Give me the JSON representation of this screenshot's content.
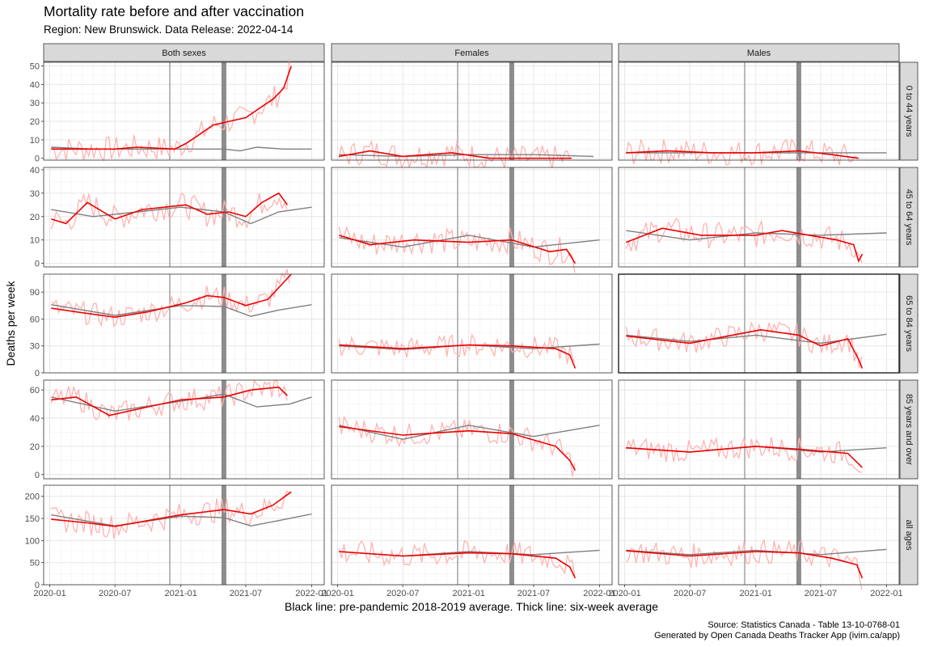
{
  "title": "Mortality rate before and after vaccination",
  "subtitle": "Region: New Brunswick. Data Release: 2022-04-14",
  "caption_lines": [
    "Source: Statistics Canada - Table 13-10-0768-01",
    "Generated by Open Canada Deaths Tracker App (ivim.ca/app)"
  ],
  "chart_data": {
    "type": "line",
    "facet_columns": [
      "Both sexes",
      "Females",
      "Males"
    ],
    "facet_rows": [
      "0 to 44 years",
      "45 to 64 years",
      "65 to 84 years",
      "85 years and over",
      "all ages"
    ],
    "ylabel": "Deaths per week",
    "xlabel": "Black line: pre-pandemic 2018-2019 average. Thick line: six-week average",
    "x_ticks": [
      "2020-01",
      "2020-07",
      "2021-01",
      "2021-07",
      "2022-01"
    ],
    "xlim": [
      "2019-12-15",
      "2022-02-05"
    ],
    "reference_lines": {
      "thin_vertical": "2020-12-01",
      "thick_vertical": "2021-05-01"
    },
    "grid": true,
    "colors": {
      "weekly": "#ffb3b3",
      "six_week_average": "#ee0000",
      "baseline": "#7f7f7f",
      "reference": "#8c8c8c"
    },
    "row_scales": [
      {
        "ylim": [
          -1,
          52
        ],
        "ticks": [
          0,
          10,
          20,
          30,
          40,
          50
        ]
      },
      {
        "ylim": [
          -1.5,
          41
        ],
        "ticks": [
          0,
          10,
          20,
          30,
          40
        ]
      },
      {
        "ylim": [
          0,
          110
        ],
        "ticks": [
          0,
          30,
          60,
          90
        ]
      },
      {
        "ylim": [
          -3,
          67
        ],
        "ticks": [
          0,
          20,
          40,
          60
        ]
      },
      {
        "ylim": [
          0,
          225
        ],
        "ticks": [
          0,
          50,
          100,
          150,
          200
        ]
      }
    ],
    "panels": [
      {
        "row": 0,
        "col": 0,
        "baseline": [
          [
            "2020-01-05",
            6
          ],
          [
            "2020-05-01",
            5
          ],
          [
            "2020-09-01",
            5
          ],
          [
            "2021-01-01",
            5
          ],
          [
            "2021-05-01",
            5
          ],
          [
            "2021-06-15",
            4
          ],
          [
            "2021-08-01",
            6
          ],
          [
            "2021-10-15",
            5
          ],
          [
            "2022-01-01",
            5
          ]
        ],
        "six_week_average": [
          [
            "2020-01-05",
            5
          ],
          [
            "2020-03-01",
            5
          ],
          [
            "2020-07-01",
            5
          ],
          [
            "2020-09-01",
            6
          ],
          [
            "2020-12-15",
            5
          ],
          [
            "2021-01-15",
            8
          ],
          [
            "2021-02-15",
            12
          ],
          [
            "2021-04-01",
            18
          ],
          [
            "2021-05-15",
            20
          ],
          [
            "2021-07-01",
            22
          ],
          [
            "2021-08-15",
            28
          ],
          [
            "2021-09-15",
            32
          ],
          [
            "2021-10-15",
            38
          ],
          [
            "2021-11-05",
            50
          ]
        ]
      },
      {
        "row": 0,
        "col": 1,
        "baseline": [
          [
            "2020-01-05",
            2
          ],
          [
            "2020-07-01",
            1
          ],
          [
            "2021-01-01",
            2
          ],
          [
            "2021-07-01",
            2
          ],
          [
            "2021-12-15",
            1
          ]
        ],
        "six_week_average": [
          [
            "2020-01-05",
            1
          ],
          [
            "2020-04-01",
            4
          ],
          [
            "2020-07-01",
            1
          ],
          [
            "2020-11-15",
            3
          ],
          [
            "2021-03-01",
            0
          ],
          [
            "2021-10-15",
            0
          ]
        ]
      },
      {
        "row": 0,
        "col": 2,
        "baseline": [
          [
            "2020-01-05",
            3
          ],
          [
            "2020-07-01",
            3
          ],
          [
            "2021-01-01",
            3
          ],
          [
            "2021-07-01",
            3
          ],
          [
            "2022-01-01",
            3
          ]
        ],
        "six_week_average": [
          [
            "2020-01-05",
            3
          ],
          [
            "2020-05-01",
            4
          ],
          [
            "2020-09-01",
            3
          ],
          [
            "2021-01-01",
            3
          ],
          [
            "2021-05-01",
            4
          ],
          [
            "2021-08-01",
            2
          ],
          [
            "2021-10-15",
            0
          ]
        ]
      },
      {
        "row": 1,
        "col": 0,
        "baseline": [
          [
            "2020-01-05",
            23
          ],
          [
            "2020-05-01",
            20
          ],
          [
            "2020-09-01",
            22
          ],
          [
            "2021-01-01",
            24
          ],
          [
            "2021-05-01",
            22
          ],
          [
            "2021-07-15",
            17
          ],
          [
            "2021-10-01",
            22
          ],
          [
            "2022-01-01",
            24
          ]
        ],
        "six_week_average": [
          [
            "2020-01-05",
            19
          ],
          [
            "2020-02-15",
            17
          ],
          [
            "2020-04-15",
            26
          ],
          [
            "2020-07-01",
            19
          ],
          [
            "2020-09-15",
            23
          ],
          [
            "2021-01-15",
            25
          ],
          [
            "2021-03-15",
            21
          ],
          [
            "2021-05-15",
            22
          ],
          [
            "2021-07-01",
            20
          ],
          [
            "2021-08-15",
            26
          ],
          [
            "2021-10-01",
            30
          ],
          [
            "2021-10-25",
            25
          ]
        ]
      },
      {
        "row": 1,
        "col": 1,
        "baseline": [
          [
            "2020-01-05",
            11
          ],
          [
            "2020-07-01",
            7
          ],
          [
            "2021-01-01",
            12
          ],
          [
            "2021-07-01",
            7
          ],
          [
            "2022-01-01",
            10
          ]
        ],
        "six_week_average": [
          [
            "2020-01-05",
            12
          ],
          [
            "2020-04-01",
            8
          ],
          [
            "2020-08-01",
            10
          ],
          [
            "2021-01-01",
            9
          ],
          [
            "2021-05-01",
            10
          ],
          [
            "2021-08-15",
            5
          ],
          [
            "2021-10-01",
            6
          ],
          [
            "2021-10-25",
            0
          ]
        ]
      },
      {
        "row": 1,
        "col": 2,
        "baseline": [
          [
            "2020-01-05",
            14
          ],
          [
            "2020-07-01",
            10
          ],
          [
            "2021-01-01",
            13
          ],
          [
            "2021-07-01",
            12
          ],
          [
            "2022-01-01",
            13
          ]
        ],
        "six_week_average": [
          [
            "2020-01-05",
            9
          ],
          [
            "2020-04-15",
            15
          ],
          [
            "2020-08-01",
            12
          ],
          [
            "2021-01-01",
            12
          ],
          [
            "2021-03-15",
            14
          ],
          [
            "2021-08-15",
            10
          ],
          [
            "2021-10-01",
            8
          ],
          [
            "2021-10-15",
            1
          ],
          [
            "2021-10-25",
            4
          ]
        ]
      },
      {
        "row": 2,
        "col": 0,
        "baseline": [
          [
            "2020-01-05",
            76
          ],
          [
            "2020-07-01",
            64
          ],
          [
            "2021-01-01",
            75
          ],
          [
            "2021-05-01",
            74
          ],
          [
            "2021-07-15",
            63
          ],
          [
            "2021-10-01",
            70
          ],
          [
            "2022-01-01",
            76
          ]
        ],
        "six_week_average": [
          [
            "2020-01-05",
            72
          ],
          [
            "2020-04-01",
            67
          ],
          [
            "2020-07-01",
            62
          ],
          [
            "2020-10-01",
            68
          ],
          [
            "2021-01-15",
            78
          ],
          [
            "2021-03-15",
            86
          ],
          [
            "2021-05-01",
            84
          ],
          [
            "2021-07-01",
            75
          ],
          [
            "2021-09-01",
            82
          ],
          [
            "2021-11-05",
            110
          ]
        ]
      },
      {
        "row": 2,
        "col": 1,
        "baseline": [
          [
            "2020-01-05",
            30
          ],
          [
            "2020-07-01",
            26
          ],
          [
            "2021-01-01",
            31
          ],
          [
            "2021-07-01",
            27
          ],
          [
            "2022-01-01",
            32
          ]
        ],
        "six_week_average": [
          [
            "2020-01-05",
            31
          ],
          [
            "2020-07-01",
            27
          ],
          [
            "2021-01-01",
            31
          ],
          [
            "2021-05-01",
            30
          ],
          [
            "2021-09-01",
            27
          ],
          [
            "2021-10-10",
            20
          ],
          [
            "2021-10-25",
            5
          ]
        ]
      },
      {
        "row": 2,
        "col": 2,
        "baseline": [
          [
            "2020-01-05",
            42
          ],
          [
            "2020-07-01",
            35
          ],
          [
            "2021-01-01",
            42
          ],
          [
            "2021-07-01",
            33
          ],
          [
            "2022-01-01",
            43
          ]
        ],
        "six_week_average": [
          [
            "2020-01-05",
            41
          ],
          [
            "2020-07-01",
            33
          ],
          [
            "2021-01-15",
            48
          ],
          [
            "2021-05-01",
            42
          ],
          [
            "2021-07-01",
            30
          ],
          [
            "2021-09-15",
            38
          ],
          [
            "2021-10-15",
            15
          ],
          [
            "2021-10-25",
            5
          ]
        ]
      },
      {
        "row": 3,
        "col": 0,
        "baseline": [
          [
            "2020-01-05",
            55
          ],
          [
            "2020-07-01",
            45
          ],
          [
            "2021-01-01",
            52
          ],
          [
            "2021-05-01",
            57
          ],
          [
            "2021-08-01",
            48
          ],
          [
            "2021-11-01",
            50
          ],
          [
            "2022-01-01",
            55
          ]
        ],
        "six_week_average": [
          [
            "2020-01-05",
            53
          ],
          [
            "2020-03-15",
            55
          ],
          [
            "2020-06-15",
            42
          ],
          [
            "2020-10-01",
            48
          ],
          [
            "2021-01-01",
            53
          ],
          [
            "2021-05-01",
            55
          ],
          [
            "2021-07-15",
            60
          ],
          [
            "2021-10-01",
            62
          ],
          [
            "2021-10-25",
            56
          ]
        ]
      },
      {
        "row": 3,
        "col": 1,
        "baseline": [
          [
            "2020-01-05",
            35
          ],
          [
            "2020-07-01",
            25
          ],
          [
            "2021-01-01",
            35
          ],
          [
            "2021-07-01",
            27
          ],
          [
            "2022-01-01",
            35
          ]
        ],
        "six_week_average": [
          [
            "2020-01-05",
            34
          ],
          [
            "2020-07-01",
            28
          ],
          [
            "2021-01-01",
            31
          ],
          [
            "2021-05-01",
            29
          ],
          [
            "2021-09-01",
            20
          ],
          [
            "2021-10-10",
            10
          ],
          [
            "2021-10-25",
            3
          ]
        ]
      },
      {
        "row": 3,
        "col": 2,
        "baseline": [
          [
            "2020-01-05",
            19
          ],
          [
            "2020-07-01",
            16
          ],
          [
            "2021-01-01",
            20
          ],
          [
            "2021-07-01",
            16
          ],
          [
            "2022-01-01",
            19
          ]
        ],
        "six_week_average": [
          [
            "2020-01-05",
            19
          ],
          [
            "2020-07-01",
            16
          ],
          [
            "2021-01-01",
            20
          ],
          [
            "2021-05-01",
            18
          ],
          [
            "2021-09-15",
            15
          ],
          [
            "2021-10-25",
            5
          ]
        ]
      },
      {
        "row": 4,
        "col": 0,
        "baseline": [
          [
            "2020-01-05",
            158
          ],
          [
            "2020-07-01",
            133
          ],
          [
            "2021-01-01",
            155
          ],
          [
            "2021-05-01",
            152
          ],
          [
            "2021-07-15",
            133
          ],
          [
            "2021-10-01",
            145
          ],
          [
            "2022-01-01",
            160
          ]
        ],
        "six_week_average": [
          [
            "2020-01-05",
            148
          ],
          [
            "2020-04-15",
            140
          ],
          [
            "2020-07-01",
            132
          ],
          [
            "2021-01-01",
            158
          ],
          [
            "2021-05-01",
            170
          ],
          [
            "2021-07-15",
            160
          ],
          [
            "2021-09-15",
            180
          ],
          [
            "2021-11-05",
            210
          ]
        ]
      },
      {
        "row": 4,
        "col": 1,
        "baseline": [
          [
            "2020-01-05",
            75
          ],
          [
            "2020-07-01",
            65
          ],
          [
            "2021-01-01",
            75
          ],
          [
            "2021-07-01",
            68
          ],
          [
            "2022-01-01",
            78
          ]
        ],
        "six_week_average": [
          [
            "2020-01-05",
            75
          ],
          [
            "2020-07-01",
            65
          ],
          [
            "2021-01-01",
            72
          ],
          [
            "2021-05-01",
            70
          ],
          [
            "2021-09-01",
            60
          ],
          [
            "2021-10-10",
            40
          ],
          [
            "2021-10-25",
            15
          ]
        ]
      },
      {
        "row": 4,
        "col": 2,
        "baseline": [
          [
            "2020-01-05",
            78
          ],
          [
            "2020-07-01",
            68
          ],
          [
            "2021-01-01",
            78
          ],
          [
            "2021-07-01",
            68
          ],
          [
            "2022-01-01",
            80
          ]
        ],
        "six_week_average": [
          [
            "2020-01-05",
            77
          ],
          [
            "2020-07-01",
            65
          ],
          [
            "2021-01-01",
            75
          ],
          [
            "2021-05-01",
            72
          ],
          [
            "2021-08-01",
            60
          ],
          [
            "2021-10-10",
            45
          ],
          [
            "2021-10-25",
            15
          ]
        ]
      }
    ]
  }
}
